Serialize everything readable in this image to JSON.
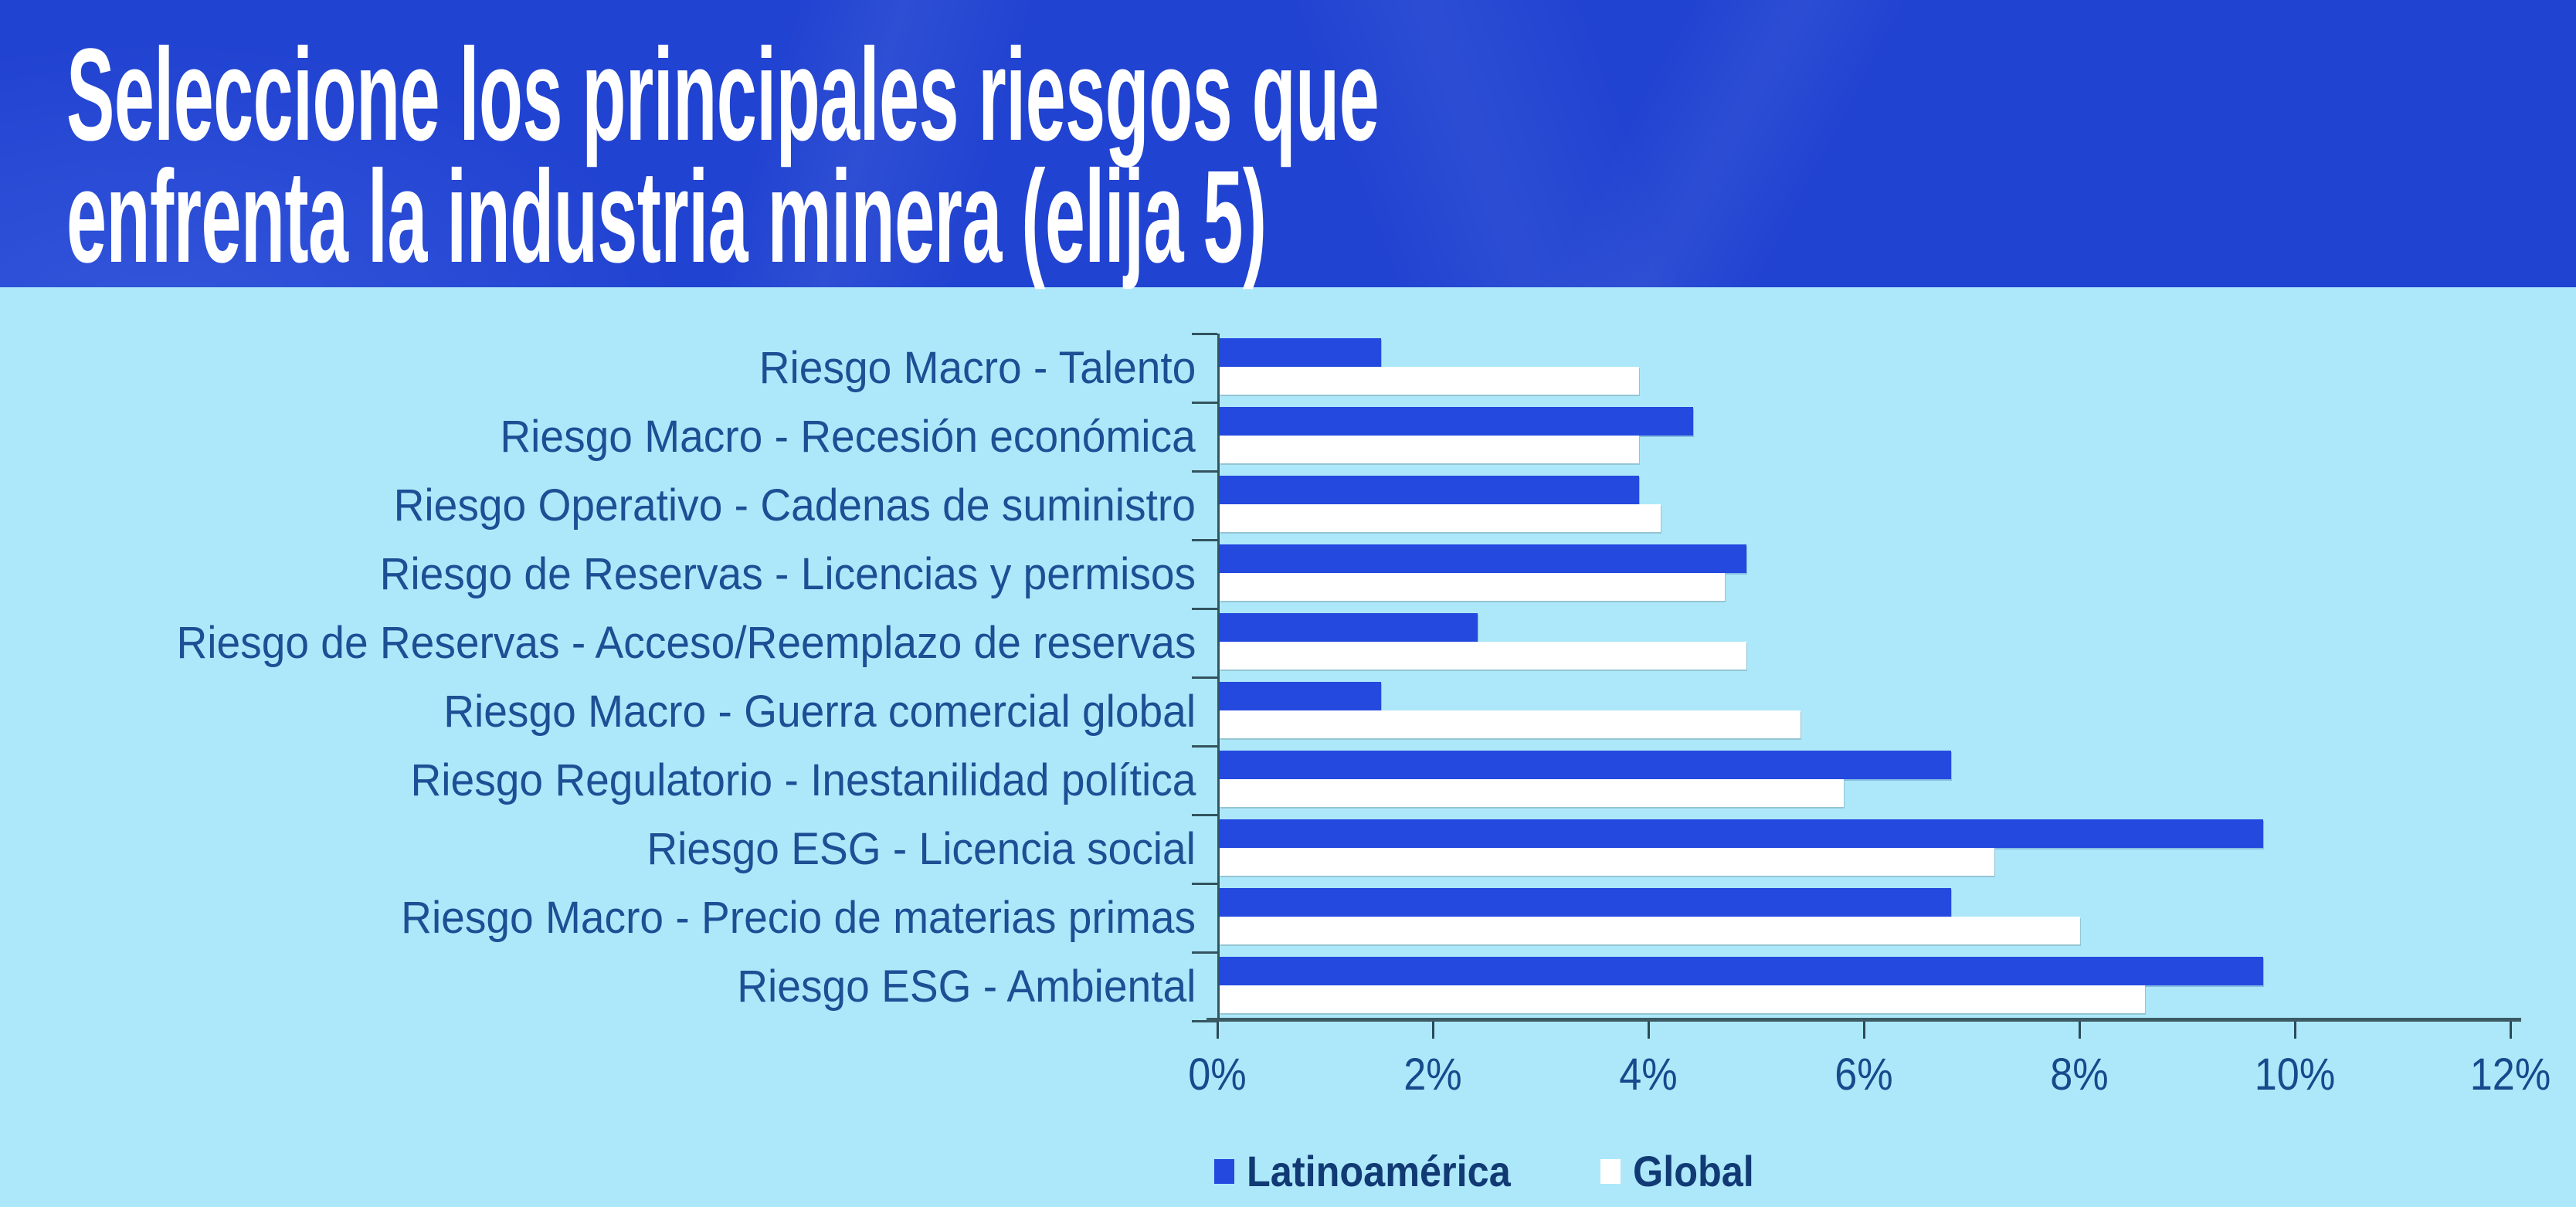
{
  "header": {
    "title_line1": "Seleccione los principales riesgos que",
    "title_line2": "enfrenta la industria minera (elija 5)"
  },
  "colors": {
    "header_bg": "#2143d1",
    "chart_bg": "#ace8fa",
    "latam_bar": "#2349df",
    "global_bar": "#ffffff",
    "category_label_text": "#1c4f94",
    "axis_label_text": "#164a8c",
    "legend_text": "#113a74",
    "axis_line": "#3b5a63",
    "tick": "#2b4a55"
  },
  "chart_data": {
    "type": "bar",
    "orientation": "horizontal",
    "title": "Seleccione los principales riesgos que enfrenta la industria minera (elija 5)",
    "categories": [
      "Riesgo Macro - Talento",
      "Riesgo Macro - Recesión económica",
      "Riesgo Operativo - Cadenas de suministro",
      "Riesgo de Reservas - Licencias y permisos",
      "Riesgo de Reservas - Acceso/Reemplazo de reservas",
      "Riesgo Macro - Guerra comercial global",
      "Riesgo Regulatorio - Inestanilidad política",
      "Riesgo ESG - Licencia social",
      "Riesgo Macro - Precio de materias primas",
      "Riesgo ESG - Ambiental"
    ],
    "series": [
      {
        "name": "Latinoamérica",
        "color": "#2349df",
        "values": [
          1.5,
          4.4,
          3.9,
          4.9,
          2.4,
          1.5,
          6.8,
          9.7,
          6.8,
          9.7
        ]
      },
      {
        "name": "Global",
        "color": "#ffffff",
        "values": [
          3.9,
          3.9,
          4.1,
          4.7,
          4.9,
          5.4,
          5.8,
          7.2,
          8.0,
          8.6
        ]
      }
    ],
    "x_ticks": [
      "0%",
      "2%",
      "4%",
      "6%",
      "8%",
      "10%",
      "12%"
    ],
    "xlim": [
      0,
      12
    ],
    "unit": "%",
    "grid": false,
    "legend_position": "bottom"
  }
}
